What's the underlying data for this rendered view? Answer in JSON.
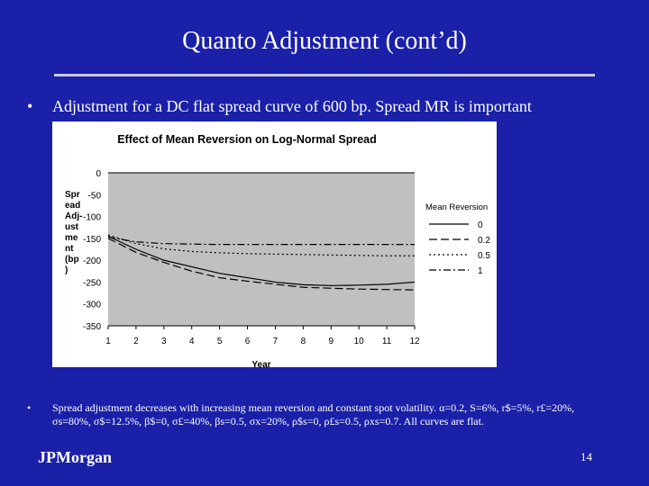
{
  "slide": {
    "title": "Quanto Adjustment (cont’d)",
    "bullet1": "Adjustment for a DC flat spread curve of 600 bp.  Spread MR is important",
    "bullet_marker": "•",
    "bullet2": {
      "intro": "Spread adjustment decreases with increasing mean reversion and constant spot volatility.",
      "params": [
        "α=0.2",
        "S=6%",
        "r$=5%",
        "r£=20%",
        "σs=80%",
        "σ$=12.5%",
        "β$=0",
        "σ£=40%",
        "βs=0.5",
        "σx=20%",
        "ρ$s=0",
        "ρ£s=0.5",
        "ρxs=0.7"
      ],
      "outro": "All curves are flat."
    },
    "logo": "JPMorgan",
    "page_number": "14"
  },
  "chart_data": {
    "type": "line",
    "title": "Effect of Mean Reversion on Log-Normal Spread",
    "xlabel": "Year",
    "ylabel": "Spread Adjustment (bp)",
    "ylabel_wrapped": [
      "Spr",
      "ead",
      "Adj-",
      "ust",
      "me",
      "nt",
      "(bp",
      ")"
    ],
    "x": [
      1,
      2,
      3,
      4,
      5,
      6,
      7,
      8,
      9,
      10,
      11,
      12
    ],
    "xlim": [
      1,
      12
    ],
    "ylim": [
      -350,
      0
    ],
    "yticks": [
      0,
      -50,
      -100,
      -150,
      -200,
      -250,
      -300,
      -350
    ],
    "legend_title": "Mean Reversion",
    "legend_position": "right",
    "series": [
      {
        "name": "0",
        "dash": "solid",
        "values": [
          -145,
          -175,
          -200,
          -215,
          -230,
          -240,
          -250,
          -256,
          -258,
          -257,
          -255,
          -250
        ]
      },
      {
        "name": "0.2",
        "dash": "longdash",
        "values": [
          -150,
          -182,
          -205,
          -225,
          -240,
          -248,
          -255,
          -262,
          -264,
          -266,
          -267,
          -268
        ]
      },
      {
        "name": "0.5",
        "dash": "dot",
        "values": [
          -142,
          -162,
          -174,
          -180,
          -183,
          -185,
          -186,
          -187,
          -188,
          -189,
          -190,
          -190
        ]
      },
      {
        "name": "1",
        "dash": "dashdot",
        "values": [
          -147,
          -158,
          -162,
          -163,
          -164,
          -164,
          -164,
          -164,
          -164,
          -164,
          -164,
          -164
        ]
      }
    ]
  }
}
